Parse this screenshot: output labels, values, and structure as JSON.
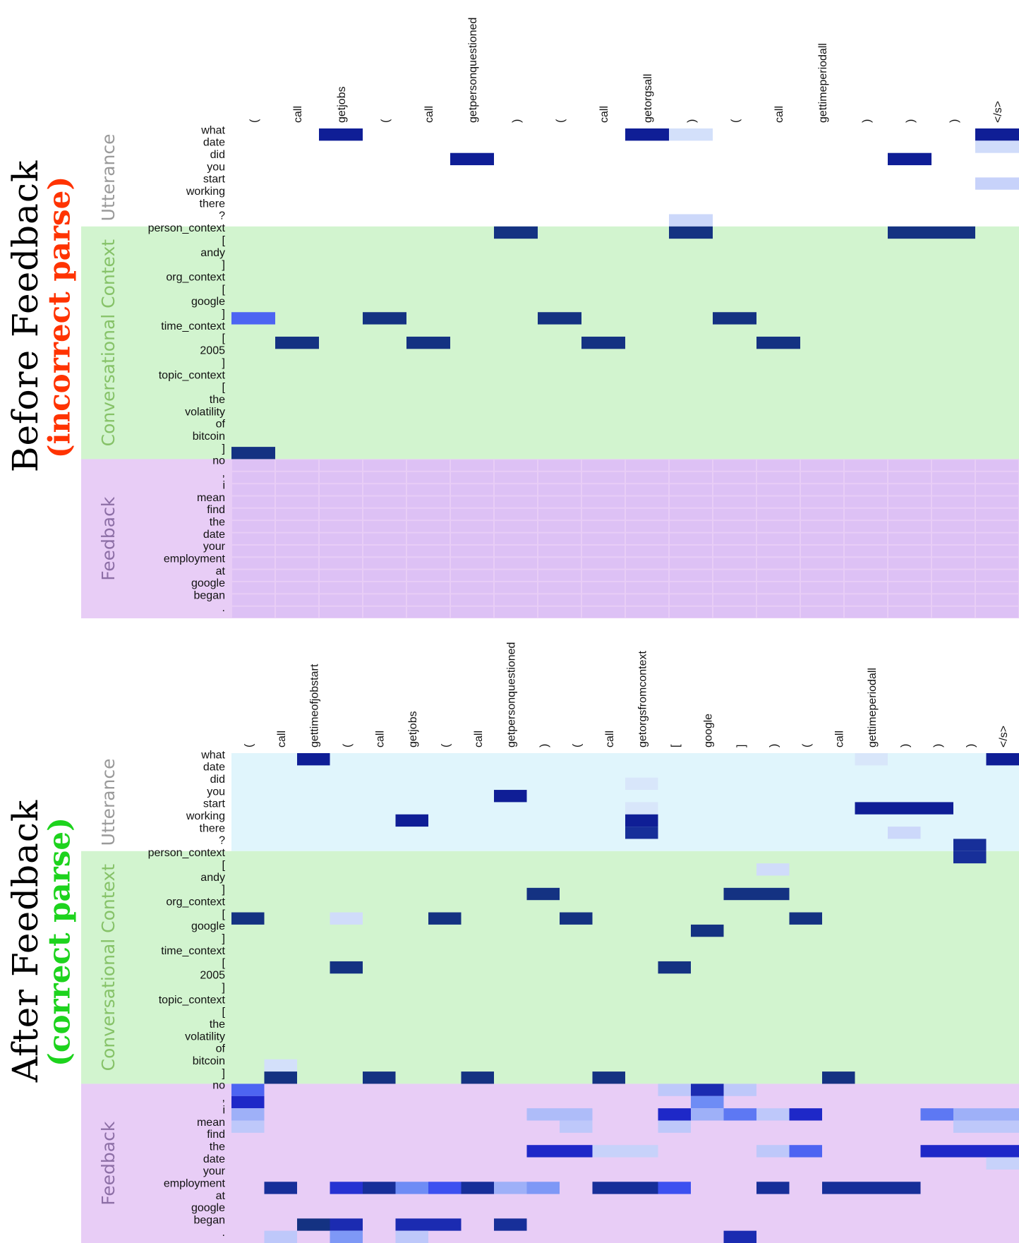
{
  "colors": {
    "utterance_bg": "#e0f5fc",
    "context_bg": "#d2f4cf",
    "feedback_bg": "#e8cdf6",
    "seg_utterance": "#9a9a9a",
    "seg_context": "#86c268",
    "seg_feedback": "#8d6fa6",
    "incorrect": "#ff3300",
    "correct": "#1dd31d"
  },
  "segments": {
    "utterance": "Utterance",
    "context": "Conversational Context",
    "feedback": "Feedback"
  },
  "panels": [
    {
      "title": "Before Feedback",
      "subtitle": "(incorrect parse)",
      "subtitle_color": "incorrect"
    },
    {
      "title": "After Feedback",
      "subtitle": "(correct parse)",
      "subtitle_color": "correct"
    }
  ],
  "chart_data": [
    {
      "type": "heatmap",
      "title": "Before Feedback (incorrect parse)",
      "columns": [
        "(",
        "call",
        "getjobs",
        "(",
        "call",
        "getpersonquestioned",
        ")",
        "(",
        "call",
        "getorgsall",
        ")",
        "(",
        "call",
        "gettimeperiodall",
        ")",
        ")",
        ")",
        "</s>"
      ],
      "rows": [
        "what",
        "date",
        "did",
        "you",
        "start",
        "working",
        "there",
        "?",
        "person_context",
        "[",
        "andy",
        "]",
        "org_context",
        "[",
        "google",
        "]",
        "time_context",
        "[",
        "2005",
        "]",
        "topic_context",
        "[",
        "the",
        "volatility",
        "of",
        "bitcoin",
        "]",
        "no",
        ",",
        "i",
        "mean",
        "find",
        "the",
        "date",
        "your",
        "employment",
        "at",
        "google",
        "began",
        "."
      ],
      "row_groups": [
        {
          "segment": "utterance",
          "rows": [
            0,
            7
          ]
        },
        {
          "segment": "context",
          "rows": [
            8,
            26
          ]
        },
        {
          "segment": "feedback",
          "rows": [
            27,
            39
          ]
        }
      ],
      "cells": [
        [
          0,
          2,
          1.0
        ],
        [
          0,
          9,
          1.0
        ],
        [
          0,
          10,
          0.08
        ],
        [
          0,
          17,
          1.0
        ],
        [
          1,
          17,
          0.1
        ],
        [
          2,
          5,
          1.0
        ],
        [
          2,
          15,
          1.0
        ],
        [
          4,
          17,
          0.15
        ],
        [
          7,
          10,
          0.12
        ],
        [
          8,
          6,
          0.95
        ],
        [
          8,
          10,
          0.95
        ],
        [
          8,
          15,
          0.95
        ],
        [
          8,
          16,
          0.95
        ],
        [
          15,
          0,
          0.55
        ],
        [
          15,
          3,
          0.95
        ],
        [
          15,
          7,
          0.95
        ],
        [
          15,
          11,
          0.95
        ],
        [
          17,
          1,
          0.95
        ],
        [
          17,
          4,
          0.95
        ],
        [
          17,
          8,
          0.95
        ],
        [
          17,
          12,
          0.95
        ],
        [
          26,
          0,
          0.95
        ]
      ],
      "feedback_uniform": 0.02
    },
    {
      "type": "heatmap",
      "title": "After Feedback (correct parse)",
      "columns": [
        "(",
        "call",
        "gettimeofjobstart",
        "(",
        "call",
        "getjobs",
        "(",
        "call",
        "getpersonquestioned",
        ")",
        "(",
        "call",
        "getorgsfromcontext",
        "[",
        "google",
        "]",
        ")",
        "(",
        "call",
        "gettimeperiodall",
        ")",
        ")",
        ")",
        "</s>"
      ],
      "rows": [
        "what",
        "date",
        "did",
        "you",
        "start",
        "working",
        "there",
        "?",
        "person_context",
        "[",
        "andy",
        "]",
        "org_context",
        "[",
        "google",
        "]",
        "time_context",
        "[",
        "2005",
        "]",
        "topic_context",
        "[",
        "the",
        "volatility",
        "of",
        "bitcoin",
        "]",
        "no",
        ",",
        "i",
        "mean",
        "find",
        "the",
        "date",
        "your",
        "employment",
        "at",
        "google",
        "began",
        "."
      ],
      "row_groups": [
        {
          "segment": "utterance",
          "rows": [
            0,
            7
          ]
        },
        {
          "segment": "context",
          "rows": [
            8,
            26
          ]
        },
        {
          "segment": "feedback",
          "rows": [
            27,
            39
          ]
        }
      ],
      "cells": [
        [
          0,
          2,
          1.0
        ],
        [
          0,
          19,
          0.05
        ],
        [
          0,
          23,
          1.0
        ],
        [
          2,
          12,
          0.05
        ],
        [
          3,
          8,
          1.0
        ],
        [
          4,
          12,
          0.05
        ],
        [
          4,
          19,
          1.0
        ],
        [
          4,
          20,
          1.0
        ],
        [
          4,
          21,
          1.0
        ],
        [
          5,
          5,
          1.0
        ],
        [
          5,
          12,
          1.0
        ],
        [
          6,
          12,
          0.9
        ],
        [
          6,
          20,
          0.12
        ],
        [
          7,
          22,
          0.9
        ],
        [
          8,
          22,
          0.9
        ],
        [
          9,
          16,
          0.1
        ],
        [
          11,
          9,
          0.95
        ],
        [
          11,
          15,
          0.95
        ],
        [
          11,
          16,
          0.95
        ],
        [
          13,
          0,
          0.95
        ],
        [
          13,
          3,
          0.1
        ],
        [
          13,
          6,
          0.95
        ],
        [
          13,
          10,
          0.95
        ],
        [
          13,
          17,
          0.95
        ],
        [
          14,
          14,
          0.95
        ],
        [
          17,
          3,
          0.95
        ],
        [
          17,
          13,
          0.95
        ],
        [
          25,
          1,
          0.08
        ],
        [
          26,
          1,
          0.95
        ],
        [
          26,
          4,
          0.95
        ],
        [
          26,
          7,
          0.95
        ],
        [
          26,
          11,
          0.95
        ],
        [
          26,
          18,
          0.95
        ],
        [
          27,
          0,
          0.55
        ],
        [
          27,
          13,
          0.2
        ],
        [
          27,
          14,
          0.85
        ],
        [
          27,
          15,
          0.2
        ],
        [
          28,
          0,
          0.8
        ],
        [
          28,
          14,
          0.45
        ],
        [
          29,
          0,
          0.3
        ],
        [
          29,
          9,
          0.25
        ],
        [
          29,
          10,
          0.25
        ],
        [
          29,
          13,
          0.8
        ],
        [
          29,
          14,
          0.3
        ],
        [
          29,
          15,
          0.5
        ],
        [
          29,
          16,
          0.2
        ],
        [
          29,
          17,
          0.8
        ],
        [
          29,
          21,
          0.5
        ],
        [
          29,
          22,
          0.3
        ],
        [
          29,
          23,
          0.3
        ],
        [
          30,
          0,
          0.2
        ],
        [
          30,
          10,
          0.2
        ],
        [
          30,
          13,
          0.2
        ],
        [
          30,
          22,
          0.2
        ],
        [
          30,
          23,
          0.2
        ],
        [
          32,
          9,
          0.8
        ],
        [
          32,
          10,
          0.8
        ],
        [
          32,
          11,
          0.15
        ],
        [
          32,
          12,
          0.15
        ],
        [
          32,
          16,
          0.2
        ],
        [
          32,
          17,
          0.55
        ],
        [
          32,
          21,
          0.8
        ],
        [
          32,
          22,
          0.8
        ],
        [
          32,
          23,
          0.8
        ],
        [
          33,
          23,
          0.15
        ],
        [
          35,
          1,
          0.9
        ],
        [
          35,
          3,
          0.75
        ],
        [
          35,
          4,
          0.9
        ],
        [
          35,
          5,
          0.45
        ],
        [
          35,
          6,
          0.6
        ],
        [
          35,
          7,
          0.9
        ],
        [
          35,
          8,
          0.3
        ],
        [
          35,
          9,
          0.4
        ],
        [
          35,
          11,
          0.9
        ],
        [
          35,
          12,
          0.9
        ],
        [
          35,
          13,
          0.6
        ],
        [
          35,
          16,
          0.9
        ],
        [
          35,
          18,
          0.9
        ],
        [
          35,
          19,
          0.9
        ],
        [
          35,
          20,
          0.9
        ],
        [
          38,
          2,
          0.95
        ],
        [
          38,
          3,
          0.85
        ],
        [
          38,
          5,
          0.85
        ],
        [
          38,
          6,
          0.85
        ],
        [
          38,
          8,
          0.9
        ],
        [
          39,
          1,
          0.2
        ],
        [
          39,
          3,
          0.4
        ],
        [
          39,
          5,
          0.2
        ],
        [
          39,
          15,
          0.85
        ]
      ],
      "feedback_uniform": 0.0
    }
  ]
}
